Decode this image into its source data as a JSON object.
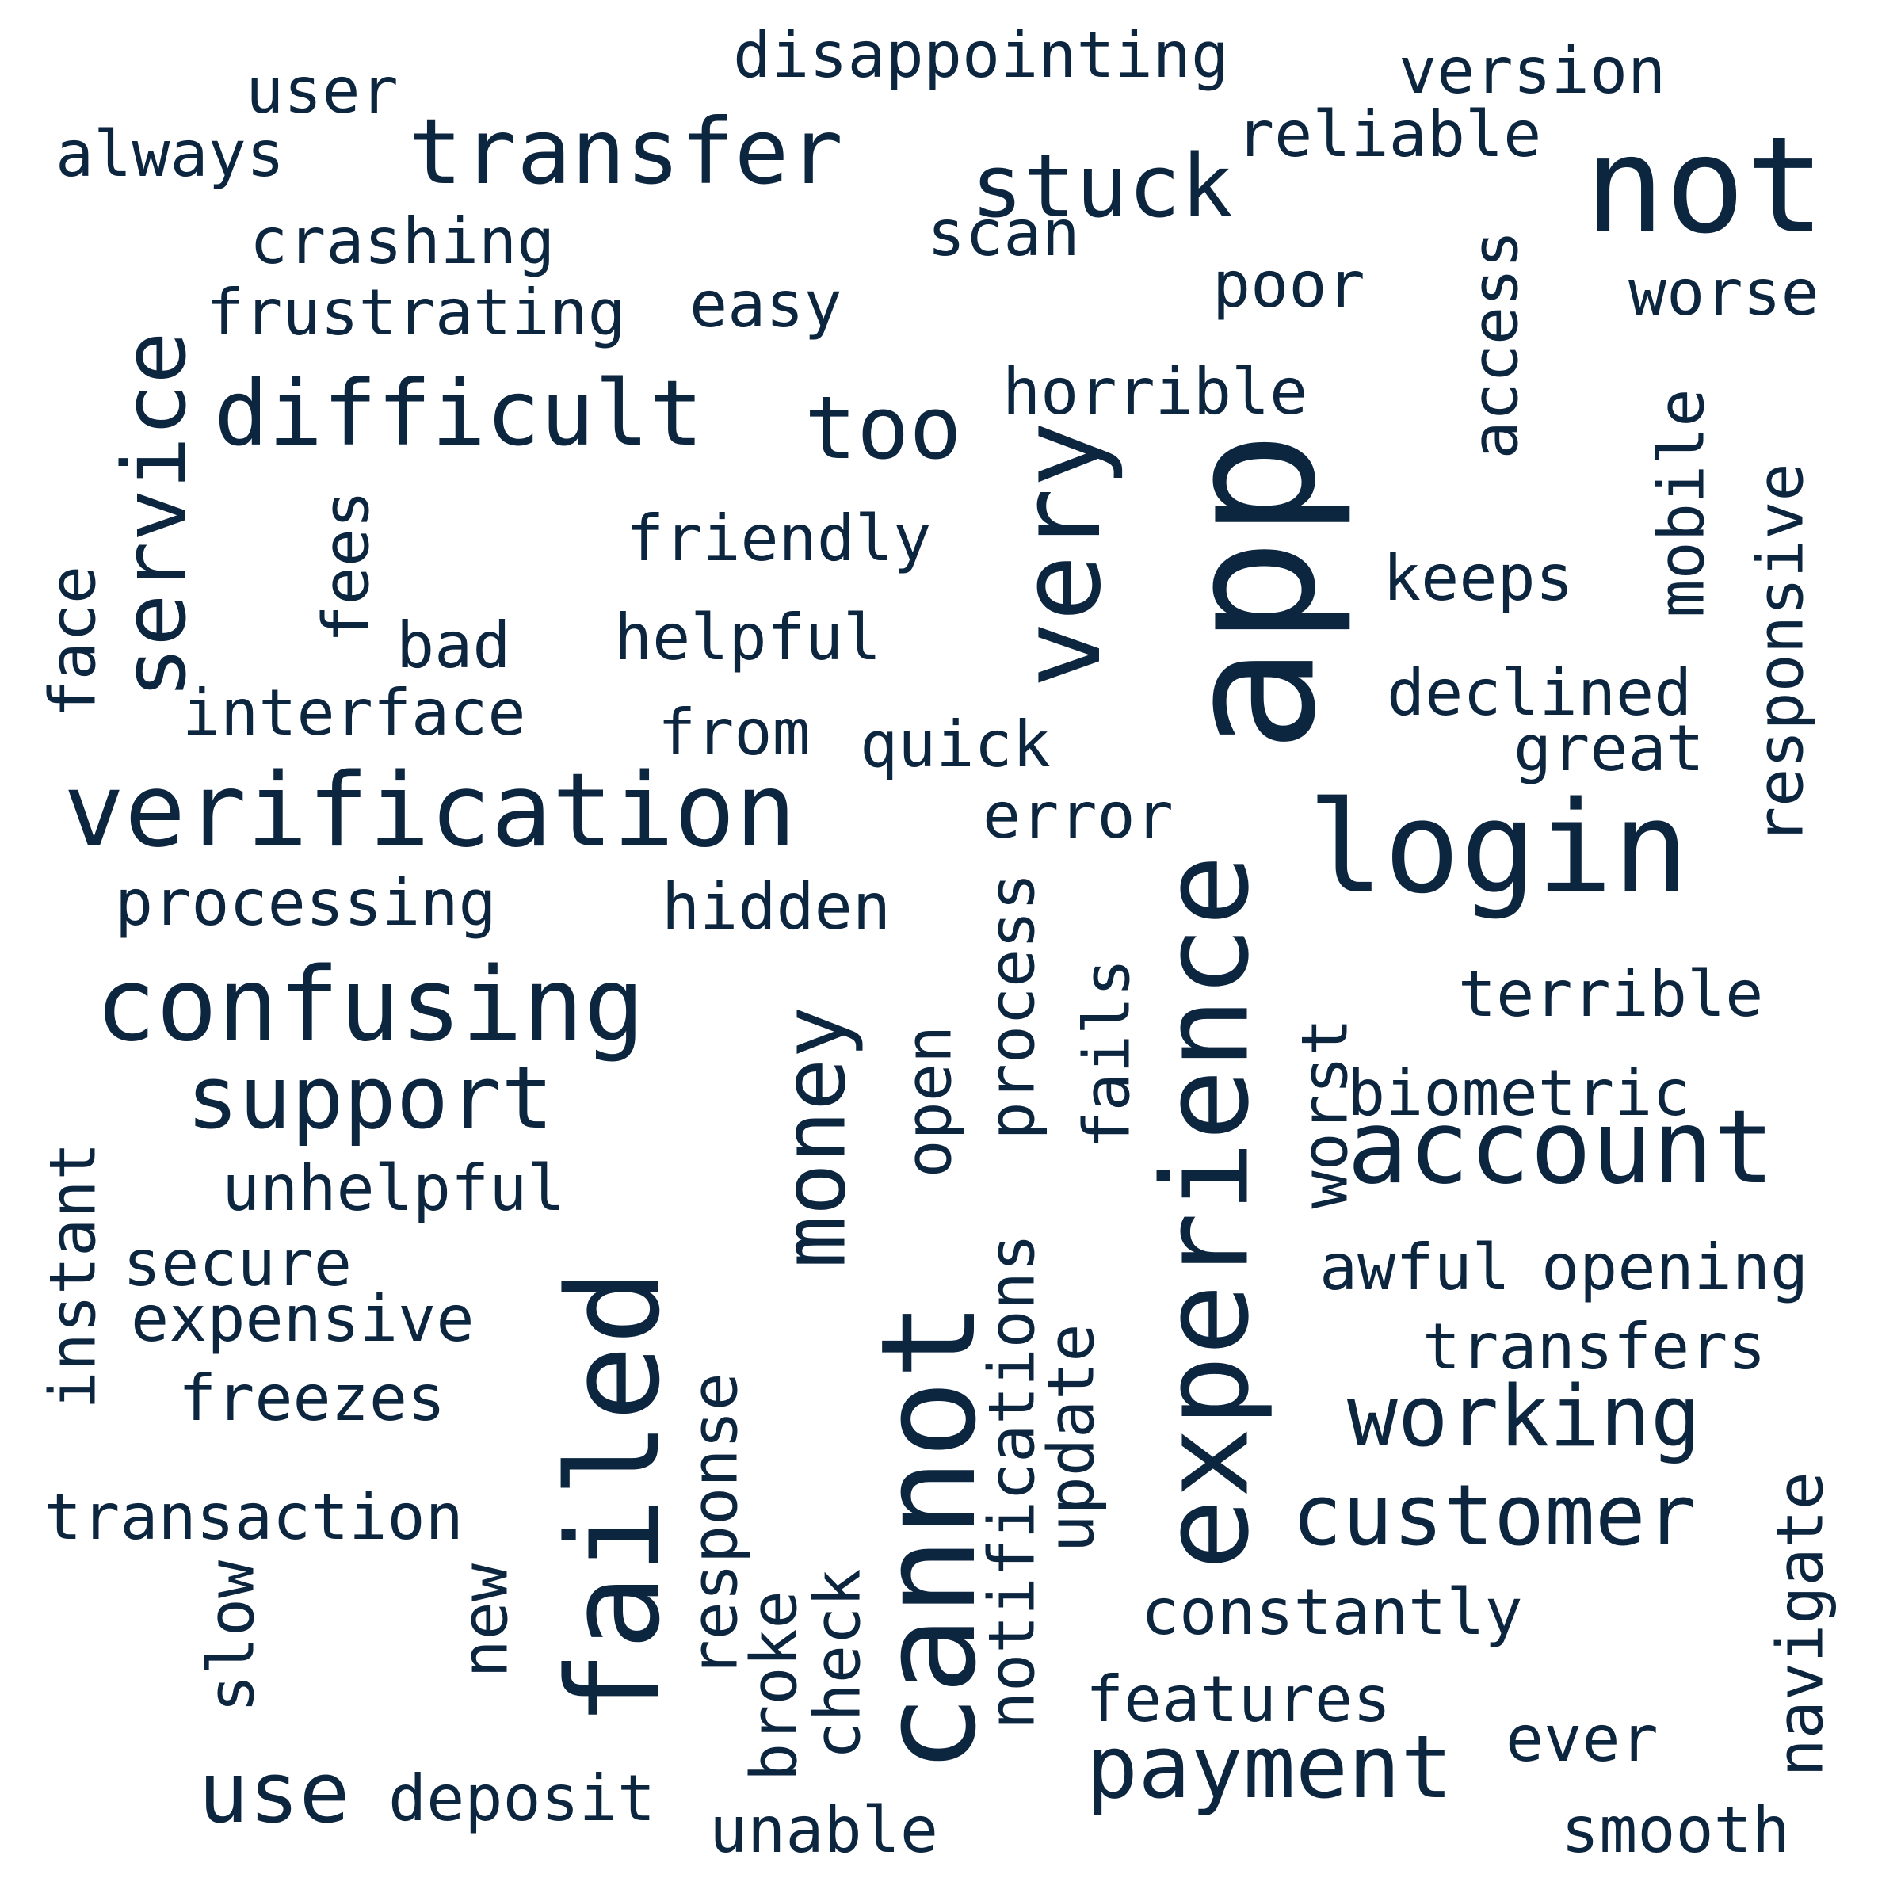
{
  "background_color": "#ffffff",
  "text_color": "#0d2640",
  "words": [
    {
      "text": "app",
      "weight": 100,
      "rotated": true
    },
    {
      "text": "not",
      "weight": 85,
      "rotated": false
    },
    {
      "text": "login",
      "weight": 78,
      "rotated": false
    },
    {
      "text": "experience",
      "weight": 75,
      "rotated": true
    },
    {
      "text": "cannot",
      "weight": 75,
      "rotated": true
    },
    {
      "text": "failed",
      "weight": 73,
      "rotated": true
    },
    {
      "text": "verification",
      "weight": 70,
      "rotated": false
    },
    {
      "text": "confusing",
      "weight": 68,
      "rotated": false
    },
    {
      "text": "account",
      "weight": 65,
      "rotated": false
    },
    {
      "text": "very",
      "weight": 63,
      "rotated": true
    },
    {
      "text": "service",
      "weight": 58,
      "rotated": true
    },
    {
      "text": "difficult",
      "weight": 56,
      "rotated": false
    },
    {
      "text": "transfer",
      "weight": 56,
      "rotated": false
    },
    {
      "text": "money",
      "weight": 56,
      "rotated": true
    },
    {
      "text": "stuck",
      "weight": 54,
      "rotated": false
    },
    {
      "text": "too",
      "weight": 52,
      "rotated": false
    },
    {
      "text": "support",
      "weight": 52,
      "rotated": false
    },
    {
      "text": "payment",
      "weight": 52,
      "rotated": false
    },
    {
      "text": "customer",
      "weight": 50,
      "rotated": false
    },
    {
      "text": "working",
      "weight": 50,
      "rotated": false
    },
    {
      "text": "use",
      "weight": 50,
      "rotated": false
    },
    {
      "text": "process",
      "weight": 42,
      "rotated": true
    },
    {
      "text": "notifications",
      "weight": 42,
      "rotated": true
    },
    {
      "text": "disappointing",
      "weight": 40,
      "rotated": false
    },
    {
      "text": "version",
      "weight": 40,
      "rotated": false
    },
    {
      "text": "reliable",
      "weight": 40,
      "rotated": false
    },
    {
      "text": "horrible",
      "weight": 40,
      "rotated": false
    },
    {
      "text": "crashing",
      "weight": 40,
      "rotated": false
    },
    {
      "text": "frustrating",
      "weight": 40,
      "rotated": false
    },
    {
      "text": "easy",
      "weight": 40,
      "rotated": false
    },
    {
      "text": "poor",
      "weight": 40,
      "rotated": false
    },
    {
      "text": "worse",
      "weight": 40,
      "rotated": false
    },
    {
      "text": "access",
      "weight": 40,
      "rotated": true
    },
    {
      "text": "mobile",
      "weight": 40,
      "rotated": true
    },
    {
      "text": "responsive",
      "weight": 40,
      "rotated": true
    },
    {
      "text": "keeps",
      "weight": 40,
      "rotated": false
    },
    {
      "text": "declined",
      "weight": 40,
      "rotated": false
    },
    {
      "text": "great",
      "weight": 40,
      "rotated": false
    },
    {
      "text": "friendly",
      "weight": 40,
      "rotated": false
    },
    {
      "text": "helpful",
      "weight": 40,
      "rotated": false
    },
    {
      "text": "bad",
      "weight": 40,
      "rotated": false
    },
    {
      "text": "fees",
      "weight": 40,
      "rotated": true
    },
    {
      "text": "face",
      "weight": 40,
      "rotated": true
    },
    {
      "text": "interface",
      "weight": 40,
      "rotated": false
    },
    {
      "text": "from",
      "weight": 40,
      "rotated": false
    },
    {
      "text": "quick",
      "weight": 40,
      "rotated": false
    },
    {
      "text": "error",
      "weight": 40,
      "rotated": false
    },
    {
      "text": "processing",
      "weight": 40,
      "rotated": false
    },
    {
      "text": "hidden",
      "weight": 40,
      "rotated": false
    },
    {
      "text": "terrible",
      "weight": 40,
      "rotated": false
    },
    {
      "text": "biometric",
      "weight": 40,
      "rotated": false
    },
    {
      "text": "worst",
      "weight": 40,
      "rotated": true
    },
    {
      "text": "fails",
      "weight": 40,
      "rotated": true
    },
    {
      "text": "open",
      "weight": 40,
      "rotated": true
    },
    {
      "text": "unhelpful",
      "weight": 40,
      "rotated": false
    },
    {
      "text": "instant",
      "weight": 40,
      "rotated": true
    },
    {
      "text": "secure",
      "weight": 40,
      "rotated": false
    },
    {
      "text": "expensive",
      "weight": 40,
      "rotated": false
    },
    {
      "text": "freezes",
      "weight": 40,
      "rotated": false
    },
    {
      "text": "awful",
      "weight": 40,
      "rotated": false
    },
    {
      "text": "opening",
      "weight": 40,
      "rotated": false
    },
    {
      "text": "transfers",
      "weight": 40,
      "rotated": false
    },
    {
      "text": "transaction",
      "weight": 40,
      "rotated": false
    },
    {
      "text": "slow",
      "weight": 40,
      "rotated": true
    },
    {
      "text": "new",
      "weight": 40,
      "rotated": true
    },
    {
      "text": "response",
      "weight": 40,
      "rotated": true
    },
    {
      "text": "broke",
      "weight": 40,
      "rotated": true
    },
    {
      "text": "check",
      "weight": 40,
      "rotated": true
    },
    {
      "text": "update",
      "weight": 40,
      "rotated": true
    },
    {
      "text": "constantly",
      "weight": 40,
      "rotated": false
    },
    {
      "text": "features",
      "weight": 40,
      "rotated": false
    },
    {
      "text": "ever",
      "weight": 40,
      "rotated": false
    },
    {
      "text": "navigate",
      "weight": 40,
      "rotated": true
    },
    {
      "text": "deposit",
      "weight": 40,
      "rotated": false
    },
    {
      "text": "unable",
      "weight": 40,
      "rotated": false
    },
    {
      "text": "smooth",
      "weight": 40,
      "rotated": false
    },
    {
      "text": "always",
      "weight": 40,
      "rotated": false
    },
    {
      "text": "user",
      "weight": 40,
      "rotated": false
    },
    {
      "text": "scan",
      "weight": 40,
      "rotated": false
    }
  ]
}
